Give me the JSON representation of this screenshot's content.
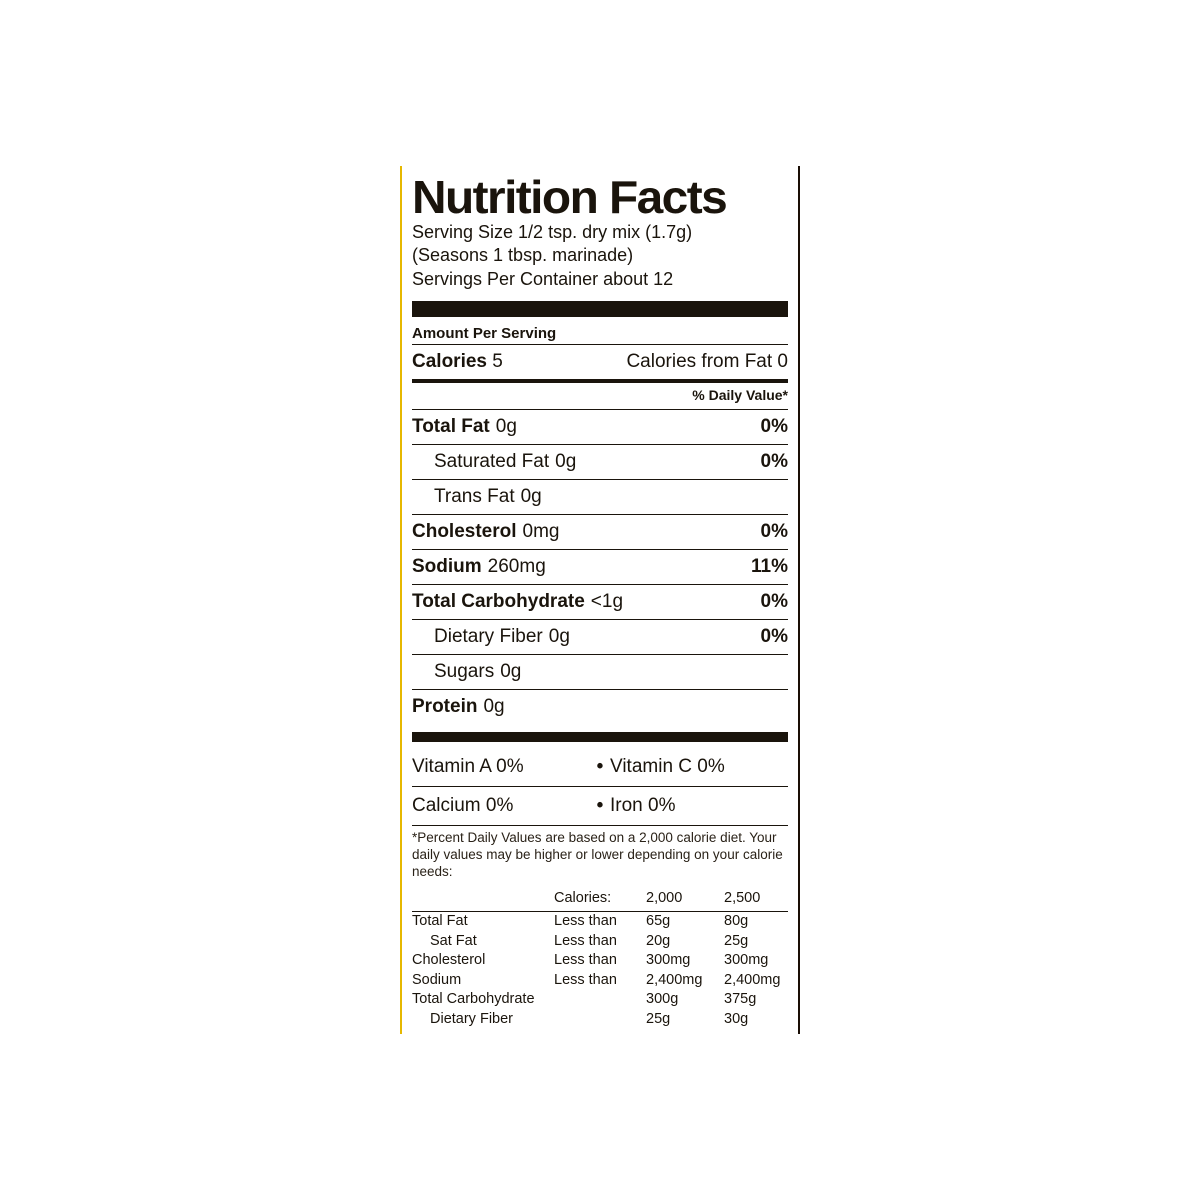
{
  "title": "Nutrition Facts",
  "serving": {
    "line1": "Serving Size 1/2 tsp. dry mix (1.7g)",
    "line2": "(Seasons 1 tbsp. marinade)",
    "line3": "Servings Per Container about 12"
  },
  "aps": "Amount Per Serving",
  "calories": {
    "label": "Calories",
    "value": "5",
    "fat_label": "Calories from Fat 0"
  },
  "dv_header": "% Daily Value*",
  "nutrients": [
    {
      "label": "Total Fat",
      "amount": "0g",
      "dv": "0%",
      "bold": true,
      "sub": false
    },
    {
      "label": "Saturated Fat",
      "amount": "0g",
      "dv": "0%",
      "bold": false,
      "sub": true
    },
    {
      "label": "Trans Fat",
      "amount": "0g",
      "dv": "",
      "bold": false,
      "sub": true
    },
    {
      "label": "Cholesterol",
      "amount": "0mg",
      "dv": "0%",
      "bold": true,
      "sub": false
    },
    {
      "label": "Sodium",
      "amount": "260mg",
      "dv": "11%",
      "bold": true,
      "sub": false
    },
    {
      "label": "Total Carbohydrate",
      "amount": "<1g",
      "dv": "0%",
      "bold": true,
      "sub": false
    },
    {
      "label": "Dietary Fiber",
      "amount": "0g",
      "dv": "0%",
      "bold": false,
      "sub": true
    },
    {
      "label": "Sugars",
      "amount": "0g",
      "dv": "",
      "bold": false,
      "sub": true
    },
    {
      "label": "Protein",
      "amount": "0g",
      "dv": "",
      "bold": true,
      "sub": false
    }
  ],
  "vitamins": [
    {
      "a": "Vitamin A 0%",
      "b": "Vitamin C 0%"
    },
    {
      "a": "Calcium 0%",
      "b": "Iron 0%"
    }
  ],
  "footnote": "*Percent Daily Values are based on a 2,000 calorie diet. Your daily values may be higher or lower depending on your calorie needs:",
  "ref_header": {
    "c2": "Calories:",
    "c3": "2,000",
    "c4": "2,500"
  },
  "ref_rows": [
    {
      "c1": "Total Fat",
      "c2": "Less than",
      "c3": "65g",
      "c4": "80g",
      "sub": false
    },
    {
      "c1": "Sat Fat",
      "c2": "Less than",
      "c3": "20g",
      "c4": "25g",
      "sub": true
    },
    {
      "c1": "Cholesterol",
      "c2": "Less than",
      "c3": "300mg",
      "c4": "300mg",
      "sub": false
    },
    {
      "c1": "Sodium",
      "c2": "Less than",
      "c3": "2,400mg",
      "c4": "2,400mg",
      "sub": false
    },
    {
      "c1": "Total Carbohydrate",
      "c2": "",
      "c3": "300g",
      "c4": "375g",
      "sub": false
    },
    {
      "c1": "Dietary Fiber",
      "c2": "",
      "c3": "25g",
      "c4": "30g",
      "sub": true
    }
  ],
  "colors": {
    "text": "#1a140c",
    "background": "#ffffff",
    "accent_left": "#e6b800",
    "accent_right": "#1a0e05"
  }
}
